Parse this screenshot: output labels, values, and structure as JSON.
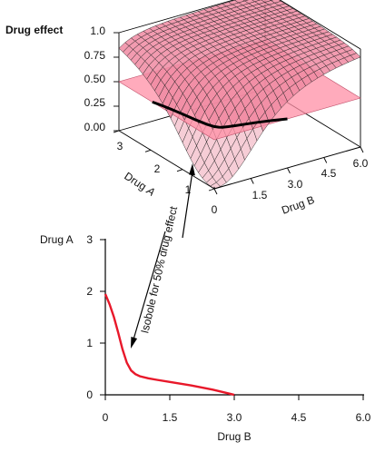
{
  "colors": {
    "surface_fill": "#f6cdd6",
    "surface_mesh": "#222222",
    "plane_fill": "#ff8fa6",
    "isobole_line": "#e8182a",
    "axis": "#000000"
  },
  "chart_data": [
    {
      "type": "surface3d",
      "title": "",
      "zlabel": "Drug effect",
      "xlabel": "Drug B",
      "ylabel": "Drug A",
      "ylabel_parts": [
        "Drug ",
        "A"
      ],
      "z_ticks": [
        "0.00",
        "0.25",
        "0.50",
        "0.75",
        "1.0"
      ],
      "x_ticks": [
        "0",
        "1.5",
        "3.0",
        "4.5",
        "6.0"
      ],
      "y_ticks": [
        "0",
        "1",
        "2",
        "3"
      ],
      "xlim": [
        0,
        6
      ],
      "ylim": [
        0,
        3
      ],
      "zlim": [
        0,
        1
      ],
      "plane_level": 0.5
    },
    {
      "type": "line",
      "title": "",
      "xlabel": "Drug B",
      "ylabel": "Drug A",
      "x_ticks": [
        "0",
        "1.5",
        "3.0",
        "4.5",
        "6.0"
      ],
      "y_ticks": [
        "0",
        "1",
        "2",
        "3"
      ],
      "xlim": [
        0,
        6
      ],
      "ylim": [
        0,
        3
      ],
      "series": [
        {
          "x": [
            0,
            0.1,
            0.2,
            0.3,
            0.4,
            0.5,
            0.6,
            0.7,
            0.8,
            1.0,
            1.2,
            1.5,
            2.0,
            2.5,
            3.0
          ],
          "y": [
            1.95,
            1.75,
            1.5,
            1.2,
            0.88,
            0.62,
            0.47,
            0.4,
            0.36,
            0.32,
            0.29,
            0.25,
            0.18,
            0.1,
            0.0
          ]
        }
      ]
    }
  ],
  "annotation": {
    "text": "Isobole for 50% drug effect"
  }
}
